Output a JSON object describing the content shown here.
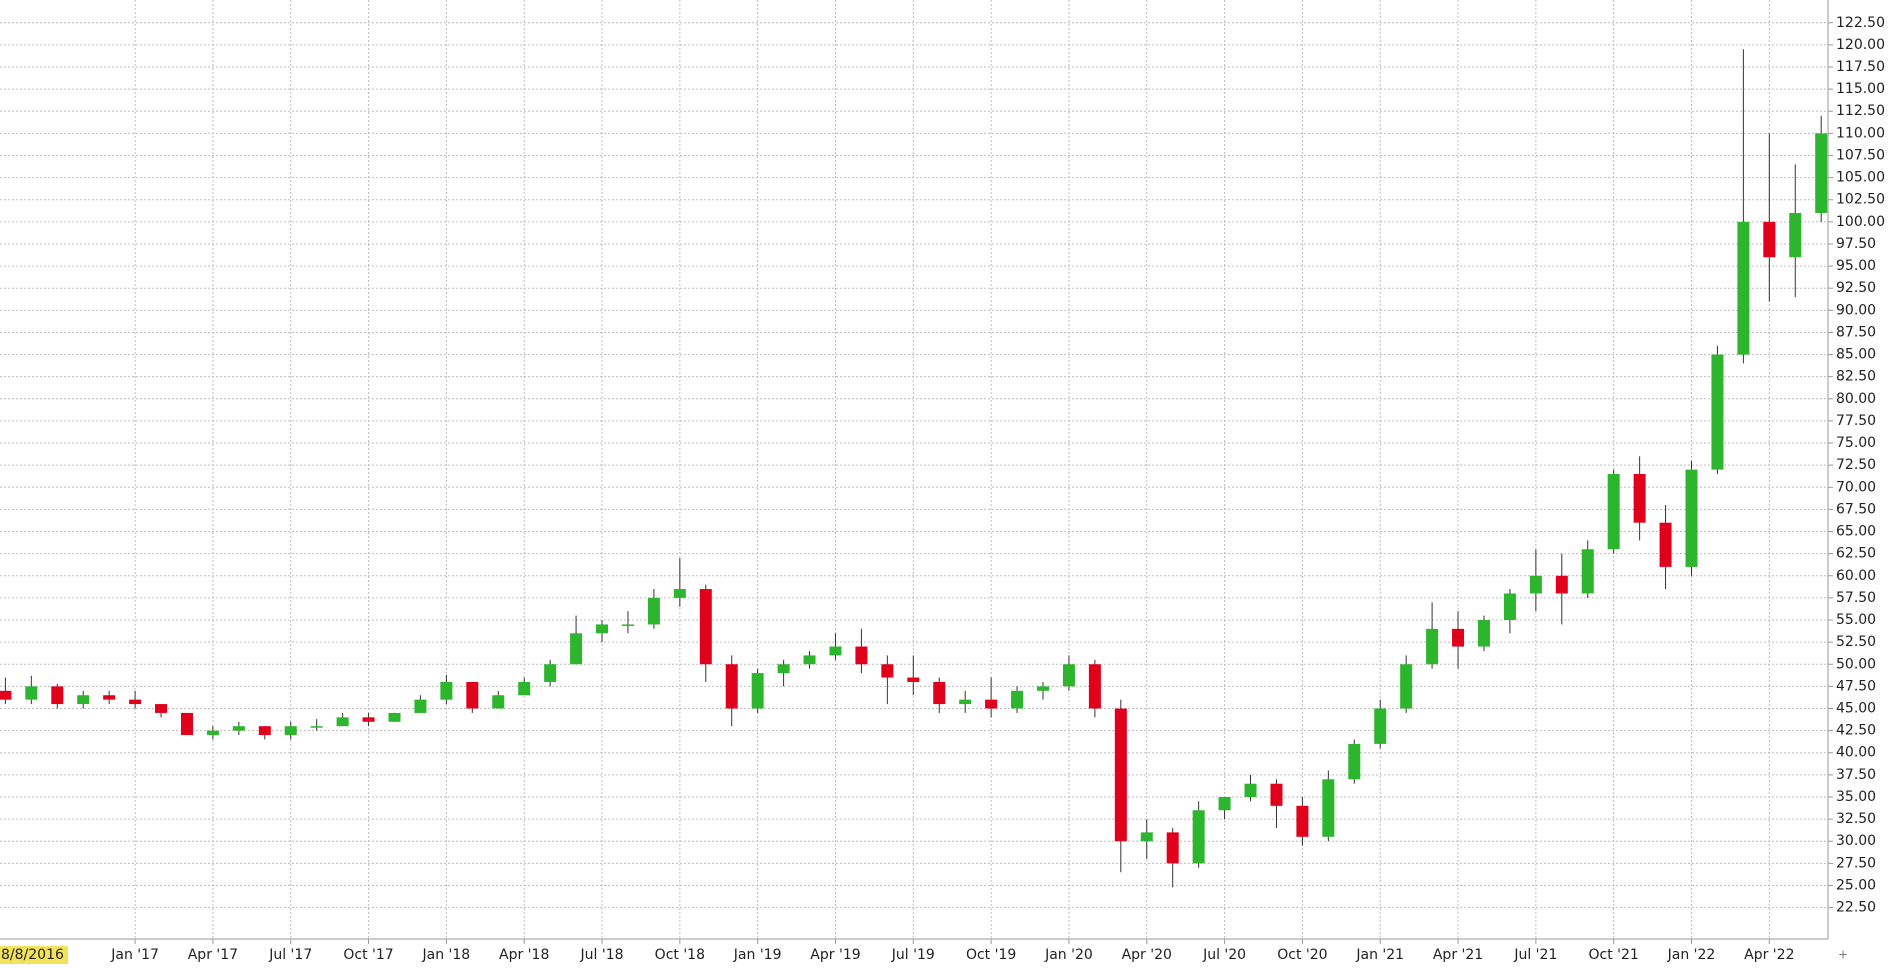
{
  "chart_data": {
    "type": "candlestick",
    "start_label": "8/8/2016",
    "x": [
      "2016-08",
      "2016-09",
      "2016-10",
      "2016-11",
      "2016-12",
      "2017-01",
      "2017-02",
      "2017-03",
      "2017-04",
      "2017-05",
      "2017-06",
      "2017-07",
      "2017-08",
      "2017-09",
      "2017-10",
      "2017-11",
      "2017-12",
      "2018-01",
      "2018-02",
      "2018-03",
      "2018-04",
      "2018-05",
      "2018-06",
      "2018-07",
      "2018-08",
      "2018-09",
      "2018-10",
      "2018-11",
      "2018-12",
      "2019-01",
      "2019-02",
      "2019-03",
      "2019-04",
      "2019-05",
      "2019-06",
      "2019-07",
      "2019-08",
      "2019-09",
      "2019-10",
      "2019-11",
      "2019-12",
      "2020-01",
      "2020-02",
      "2020-03",
      "2020-04",
      "2020-05",
      "2020-06",
      "2020-07",
      "2020-08",
      "2020-09",
      "2020-10",
      "2020-11",
      "2020-12",
      "2021-01",
      "2021-02",
      "2021-03",
      "2021-04",
      "2021-05",
      "2021-06",
      "2021-07",
      "2021-08",
      "2021-09",
      "2021-10",
      "2021-11",
      "2021-12",
      "2022-01",
      "2022-02",
      "2022-03",
      "2022-04",
      "2022-05",
      "2022-06"
    ],
    "open": [
      47,
      46,
      47.5,
      45.5,
      46.5,
      46,
      45.5,
      44.5,
      42,
      42.5,
      43,
      42,
      43,
      43,
      44,
      43.5,
      44.5,
      46,
      48,
      45,
      46.5,
      48,
      50,
      53.5,
      54.5,
      54.5,
      57.5,
      58.5,
      50,
      45,
      49,
      50,
      51,
      52,
      50,
      48.5,
      48,
      45.5,
      46,
      45,
      47,
      47.5,
      50,
      45,
      30,
      31,
      27.5,
      33.5,
      35,
      36.5,
      34,
      30.5,
      37,
      41,
      45,
      50,
      54,
      52,
      55,
      58,
      60,
      58,
      63,
      71.5,
      66,
      61,
      72,
      85,
      100,
      96,
      101
    ],
    "high": [
      48.5,
      48.7,
      47.8,
      47,
      47,
      47,
      45.5,
      44.5,
      43,
      43.5,
      43,
      43.5,
      43.8,
      44.5,
      44.5,
      44.5,
      46.5,
      48.8,
      48,
      47,
      48.5,
      50.5,
      55.5,
      55,
      56,
      58.5,
      62,
      59,
      51,
      49.5,
      50.5,
      51.5,
      53.5,
      54,
      51,
      51,
      48.5,
      47,
      48.5,
      47.5,
      48,
      51,
      50.5,
      46,
      32.5,
      31.5,
      34.5,
      35,
      37.5,
      37,
      35,
      38,
      41.5,
      46,
      51,
      57,
      56,
      55.5,
      58.5,
      63,
      62.5,
      64,
      72,
      73.5,
      68,
      73,
      86,
      119.5,
      110,
      106.5,
      112
    ],
    "low": [
      45.5,
      45.5,
      45,
      45,
      45.5,
      45,
      44,
      42,
      41.5,
      42,
      41.5,
      41.5,
      42.5,
      43,
      43,
      43.5,
      44.5,
      45.5,
      44.5,
      45,
      46.5,
      47.5,
      50,
      52.5,
      53.5,
      54,
      56.5,
      48,
      43,
      44.5,
      47.5,
      49.5,
      50.5,
      49,
      45.5,
      46.5,
      44.5,
      44.5,
      44,
      44.5,
      46,
      47,
      44,
      26.5,
      28,
      24.8,
      27,
      32.5,
      34.5,
      31.5,
      29.5,
      30,
      36.5,
      40.5,
      44.5,
      49.5,
      49.5,
      51.5,
      53.5,
      56,
      54.5,
      57.5,
      62.5,
      64,
      58.5,
      60,
      71.5,
      84,
      91,
      91.5,
      100
    ],
    "close": [
      46,
      47.5,
      45.5,
      46.5,
      46,
      45.5,
      44.5,
      42,
      42.5,
      43,
      42,
      43,
      43,
      44,
      43.5,
      44.5,
      46,
      48,
      45,
      46.5,
      48,
      50,
      53.5,
      54.5,
      54.5,
      57.5,
      58.5,
      50,
      45,
      49,
      50,
      51,
      52,
      50,
      48.5,
      48,
      45.5,
      46,
      45,
      47,
      47.5,
      50,
      45,
      30,
      31,
      27.5,
      33.5,
      35,
      36.5,
      34,
      30.5,
      37,
      41,
      45,
      50,
      54,
      52,
      55,
      58,
      60,
      58,
      63,
      71.5,
      66,
      61,
      72,
      85,
      100,
      96,
      101,
      110
    ],
    "up_color": "#2db52d",
    "down_color": "#e0001b",
    "ylim": [
      18.95,
      124.8
    ],
    "yticks": [
      {
        "value": 22.5,
        "label": "22.50"
      },
      {
        "value": 25,
        "label": "25.00"
      },
      {
        "value": 27.5,
        "label": "27.50"
      },
      {
        "value": 30,
        "label": "30.00"
      },
      {
        "value": 32.5,
        "label": "32.50"
      },
      {
        "value": 35,
        "label": "35.00"
      },
      {
        "value": 37.5,
        "label": "37.50"
      },
      {
        "value": 40,
        "label": "40.00"
      },
      {
        "value": 42.5,
        "label": "42.50"
      },
      {
        "value": 45,
        "label": "45.00"
      },
      {
        "value": 47.5,
        "label": "47.50"
      },
      {
        "value": 50,
        "label": "50.00"
      },
      {
        "value": 52.5,
        "label": "52.50"
      },
      {
        "value": 55,
        "label": "55.00"
      },
      {
        "value": 57.5,
        "label": "57.50"
      },
      {
        "value": 60,
        "label": "60.00"
      },
      {
        "value": 62.5,
        "label": "62.50"
      },
      {
        "value": 65,
        "label": "65.00"
      },
      {
        "value": 67.5,
        "label": "67.50"
      },
      {
        "value": 70,
        "label": "70.00"
      },
      {
        "value": 72.5,
        "label": "72.50"
      },
      {
        "value": 75,
        "label": "75.00"
      },
      {
        "value": 77.5,
        "label": "77.50"
      },
      {
        "value": 80,
        "label": "80.00"
      },
      {
        "value": 82.5,
        "label": "82.50"
      },
      {
        "value": 85,
        "label": "85.00"
      },
      {
        "value": 87.5,
        "label": "87.50"
      },
      {
        "value": 90,
        "label": "90.00"
      },
      {
        "value": 92.5,
        "label": "92.50"
      },
      {
        "value": 95,
        "label": "95.00"
      },
      {
        "value": 97.5,
        "label": "97.50"
      },
      {
        "value": 100,
        "label": "100.00"
      },
      {
        "value": 102.5,
        "label": "102.50"
      },
      {
        "value": 105,
        "label": "105.00"
      },
      {
        "value": 107.5,
        "label": "107.50"
      },
      {
        "value": 110,
        "label": "110.00"
      },
      {
        "value": 112.5,
        "label": "112.50"
      },
      {
        "value": 115,
        "label": "115.00"
      },
      {
        "value": 117.5,
        "label": "117.50"
      },
      {
        "value": 120,
        "label": "120.00"
      },
      {
        "value": 122.5,
        "label": "122.50"
      }
    ],
    "xticks": [
      {
        "value": "2017-01",
        "label": "Jan '17"
      },
      {
        "value": "2017-04",
        "label": "Apr '17"
      },
      {
        "value": "2017-07",
        "label": "Jul '17"
      },
      {
        "value": "2017-10",
        "label": "Oct '17"
      },
      {
        "value": "2018-01",
        "label": "Jan '18"
      },
      {
        "value": "2018-04",
        "label": "Apr '18"
      },
      {
        "value": "2018-07",
        "label": "Jul '18"
      },
      {
        "value": "2018-10",
        "label": "Oct '18"
      },
      {
        "value": "2019-01",
        "label": "Jan '19"
      },
      {
        "value": "2019-04",
        "label": "Apr '19"
      },
      {
        "value": "2019-07",
        "label": "Jul '19"
      },
      {
        "value": "2019-10",
        "label": "Oct '19"
      },
      {
        "value": "2020-01",
        "label": "Jan '20"
      },
      {
        "value": "2020-04",
        "label": "Apr '20"
      },
      {
        "value": "2020-07",
        "label": "Jul '20"
      },
      {
        "value": "2020-10",
        "label": "Oct '20"
      },
      {
        "value": "2021-01",
        "label": "Jan '21"
      },
      {
        "value": "2021-04",
        "label": "Apr '21"
      },
      {
        "value": "2021-07",
        "label": "Jul '21"
      },
      {
        "value": "2021-10",
        "label": "Oct '21"
      },
      {
        "value": "2022-01",
        "label": "Jan '22"
      },
      {
        "value": "2022-04",
        "label": "Apr '22"
      }
    ],
    "grid": true
  }
}
